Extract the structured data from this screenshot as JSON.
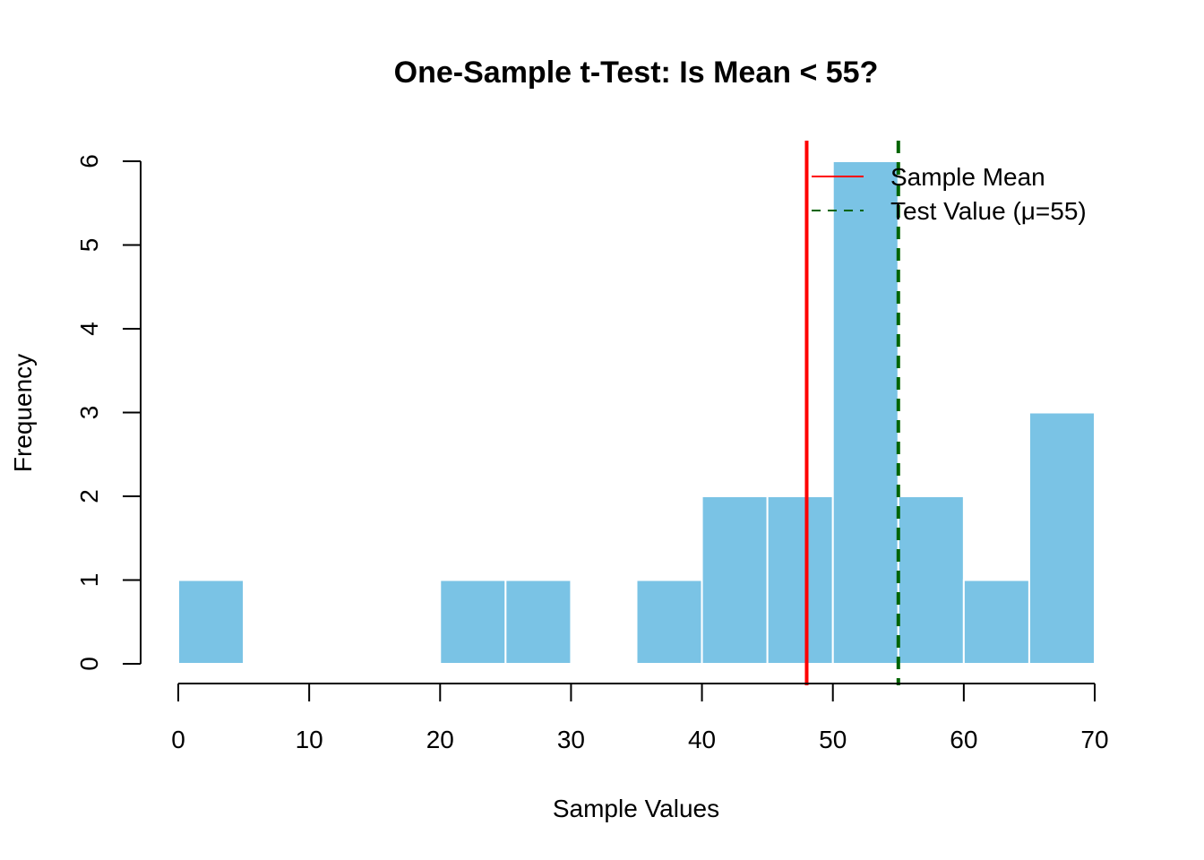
{
  "chart_data": {
    "type": "bar",
    "title": "One-Sample t-Test: Is Mean < 55?",
    "xlabel": "Sample Values",
    "ylabel": "Frequency",
    "bins": [
      {
        "start": 0,
        "end": 5,
        "count": 1
      },
      {
        "start": 5,
        "end": 10,
        "count": 0
      },
      {
        "start": 10,
        "end": 15,
        "count": 0
      },
      {
        "start": 15,
        "end": 20,
        "count": 0
      },
      {
        "start": 20,
        "end": 25,
        "count": 1
      },
      {
        "start": 25,
        "end": 30,
        "count": 1
      },
      {
        "start": 30,
        "end": 35,
        "count": 0
      },
      {
        "start": 35,
        "end": 40,
        "count": 1
      },
      {
        "start": 40,
        "end": 45,
        "count": 2
      },
      {
        "start": 45,
        "end": 50,
        "count": 2
      },
      {
        "start": 50,
        "end": 55,
        "count": 6
      },
      {
        "start": 55,
        "end": 60,
        "count": 2
      },
      {
        "start": 60,
        "end": 65,
        "count": 1
      },
      {
        "start": 65,
        "end": 70,
        "count": 3
      }
    ],
    "xlim": [
      0,
      70
    ],
    "ylim": [
      0,
      6
    ],
    "x_ticks": [
      0,
      10,
      20,
      30,
      40,
      50,
      60,
      70
    ],
    "y_ticks": [
      0,
      1,
      2,
      3,
      4,
      5,
      6
    ],
    "bar_color": "#7AC3E5",
    "bar_edge_color": "#ffffff",
    "reference_lines": [
      {
        "name": "Sample Mean",
        "x": 48,
        "color": "#FF0000",
        "style": "solid"
      },
      {
        "name": "Test Value (μ=55)",
        "x": 55,
        "color": "#006400",
        "style": "dashed"
      }
    ],
    "legend": {
      "placement": "top-right",
      "entries": [
        "Sample Mean",
        "Test Value (μ=55)"
      ]
    },
    "grid": false
  }
}
